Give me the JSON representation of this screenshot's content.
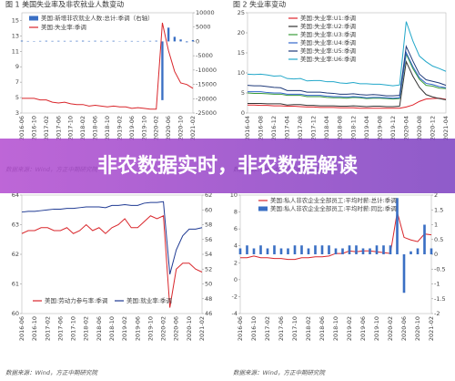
{
  "banner": "非农数据实时，非农数据解读",
  "chart_data": [
    {
      "type": "line",
      "title": "图 1  美国失业率及非农就业人数变动",
      "source": "数据来源：Wind，方正中期研究院",
      "legend": "upper left",
      "categories": [
        "2016-06",
        null,
        "2016-10",
        null,
        "2017-02",
        null,
        "2017-06",
        null,
        "2017-10",
        null,
        "2018-02",
        null,
        "2018-06",
        null,
        "2018-10",
        null,
        "2019-02",
        null,
        "2019-06",
        null,
        "2019-10",
        null,
        "2020-02",
        null,
        "2020-06",
        null,
        "2020-10",
        null,
        "2021-02"
      ],
      "ylim": [
        3,
        16
      ],
      "yticks": [
        3,
        5,
        7,
        9,
        11,
        13,
        15
      ],
      "y2lim": [
        -25000,
        10000
      ],
      "y2ticks": [
        -25000,
        -20000,
        -15000,
        -10000,
        -5000,
        0,
        5000,
        10000
      ],
      "series": [
        {
          "name": "美国:新增非农就业人数:总计:季调（右轴）",
          "color": "#3a6fc4",
          "type": "bar",
          "axis": "y2",
          "values": [
            270,
            150,
            130,
            180,
            230,
            180,
            210,
            190,
            200,
            220,
            250,
            170,
            230,
            190,
            160,
            220,
            80,
            190,
            170,
            150,
            170,
            190,
            250,
            -20500,
            4800,
            1600,
            680,
            -300,
            470
          ]
        },
        {
          "name": "美国:失业率:季调",
          "color": "#d9262b",
          "values": [
            4.9,
            4.9,
            4.9,
            4.7,
            4.7,
            4.4,
            4.3,
            4.4,
            4.2,
            4.1,
            4.1,
            3.9,
            4.0,
            3.9,
            3.8,
            3.9,
            3.8,
            3.8,
            3.6,
            3.7,
            3.6,
            3.5,
            3.5,
            14.7,
            11.1,
            8.4,
            6.9,
            6.7,
            6.2
          ]
        }
      ]
    },
    {
      "type": "line",
      "title": "图 2  失业率变动",
      "source": "数据来源：Wind，方正中期研究院",
      "legend": "upper center",
      "categories": [
        "2016-04",
        null,
        "2016-08",
        null,
        "2016-12",
        null,
        "2017-04",
        null,
        "2017-08",
        null,
        "2017-12",
        null,
        "2018-04",
        null,
        "2018-08",
        null,
        "2018-12",
        null,
        "2019-04",
        null,
        "2019-08",
        null,
        "2019-12",
        null,
        "2020-04",
        null,
        "2020-08",
        null,
        "2020-12",
        null,
        "2021-04"
      ],
      "ylim": [
        0,
        25
      ],
      "yticks": [
        0,
        5,
        10,
        15,
        20,
        25
      ],
      "series": [
        {
          "name": "美国:失业率:U1:季调",
          "color": "#e0242b",
          "values": [
            2.0,
            2.0,
            1.9,
            1.9,
            1.8,
            1.8,
            1.7,
            1.7,
            1.6,
            1.5,
            1.5,
            1.4,
            1.4,
            1.4,
            1.3,
            1.3,
            1.3,
            1.2,
            1.2,
            1.2,
            1.2,
            1.2,
            1.2,
            1.2,
            1.5,
            2.0,
            2.9,
            3.5,
            3.6,
            3.7,
            3.4
          ]
        },
        {
          "name": "美国:失业率:U2:季调",
          "color": "#333333",
          "values": [
            2.4,
            2.4,
            2.4,
            2.3,
            2.3,
            2.3,
            2.0,
            2.1,
            2.1,
            1.9,
            1.9,
            1.8,
            1.8,
            1.8,
            1.7,
            1.7,
            1.8,
            1.7,
            1.6,
            1.7,
            1.7,
            1.6,
            1.6,
            1.7,
            12.8,
            9.2,
            6.4,
            4.6,
            4.0,
            3.6,
            3.3
          ]
        },
        {
          "name": "美国:失业率:U3:季调",
          "color": "#3a9c3a",
          "values": [
            5.0,
            4.9,
            4.9,
            4.8,
            4.7,
            4.7,
            4.4,
            4.4,
            4.4,
            4.1,
            4.1,
            4.1,
            3.9,
            3.8,
            3.8,
            3.7,
            3.9,
            3.8,
            3.6,
            3.7,
            3.7,
            3.6,
            3.5,
            3.6,
            14.7,
            11.1,
            8.4,
            6.9,
            6.7,
            6.2,
            6.1
          ]
        },
        {
          "name": "美国:失业率:U4:季调",
          "color": "#3366cc",
          "values": [
            5.3,
            5.3,
            5.3,
            5.1,
            5.0,
            5.0,
            4.7,
            4.7,
            4.7,
            4.4,
            4.4,
            4.4,
            4.2,
            4.1,
            4.1,
            4.0,
            4.1,
            4.0,
            3.8,
            3.9,
            3.9,
            3.8,
            3.7,
            3.8,
            15.1,
            11.6,
            8.8,
            7.4,
            7.1,
            6.6,
            6.3
          ]
        },
        {
          "name": "美国:失业率:U5:季调",
          "color": "#1f3a7a",
          "values": [
            6.9,
            6.8,
            6.8,
            6.6,
            6.4,
            6.3,
            5.6,
            5.6,
            5.6,
            5.2,
            5.2,
            5.2,
            5.0,
            4.9,
            4.7,
            4.7,
            4.8,
            4.6,
            4.5,
            4.6,
            4.5,
            4.3,
            4.3,
            4.4,
            16.6,
            13.0,
            9.7,
            8.3,
            7.9,
            7.5,
            6.9
          ]
        },
        {
          "name": "美国:失业率:U6:季调",
          "color": "#22a7c9",
          "values": [
            9.7,
            9.6,
            9.7,
            9.5,
            9.2,
            9.3,
            8.6,
            8.5,
            8.6,
            8.0,
            8.1,
            8.1,
            7.8,
            7.8,
            7.5,
            7.4,
            7.6,
            7.3,
            7.3,
            7.2,
            7.2,
            7.0,
            6.8,
            7.0,
            22.8,
            18.0,
            14.2,
            12.8,
            11.7,
            11.1,
            10.4
          ]
        }
      ]
    },
    {
      "type": "line",
      "source": "数据来源：Wind，方正中期研究院",
      "legend": "lower center",
      "categories": [
        "2016-06",
        null,
        "2016-10",
        null,
        "2017-02",
        null,
        "2017-06",
        null,
        "2017-10",
        null,
        "2018-02",
        null,
        "2018-06",
        null,
        "2018-10",
        null,
        "2019-02",
        null,
        "2019-06",
        null,
        "2019-10",
        null,
        "2020-02",
        null,
        "2020-06",
        null,
        "2020-10",
        null,
        "2021-02"
      ],
      "ylim": [
        60,
        64
      ],
      "yticks": [
        60,
        61,
        62,
        63,
        64
      ],
      "y2lim": [
        46,
        62
      ],
      "y2ticks": [
        46,
        48,
        50,
        52,
        54,
        56,
        58,
        60,
        62
      ],
      "series": [
        {
          "name": "美国:劳动力参与率:季调",
          "color": "#d9262b",
          "values": [
            62.7,
            62.8,
            62.8,
            62.9,
            62.9,
            62.8,
            62.8,
            62.9,
            62.7,
            62.8,
            63.0,
            62.8,
            62.9,
            62.7,
            62.9,
            63.0,
            63.2,
            62.9,
            62.9,
            63.1,
            63.3,
            63.2,
            63.3,
            60.2,
            61.5,
            61.7,
            61.7,
            61.5,
            61.4
          ]
        },
        {
          "name": "美国:就业率:季调",
          "color": "#1f3a93",
          "axis": "y2",
          "values": [
            59.7,
            59.8,
            59.8,
            59.9,
            60.0,
            60.1,
            60.1,
            60.2,
            60.2,
            60.3,
            60.4,
            60.4,
            60.4,
            60.3,
            60.6,
            60.6,
            60.7,
            60.6,
            60.6,
            60.9,
            61.0,
            61.0,
            61.1,
            51.3,
            54.6,
            56.5,
            57.4,
            57.4,
            57.6
          ]
        }
      ]
    },
    {
      "type": "line",
      "source": "数据来源：Wind，方正中期研究院",
      "legend": "upper right",
      "categories": [
        "2016-06",
        null,
        "2016-10",
        null,
        "2017-02",
        null,
        "2017-06",
        null,
        "2017-10",
        null,
        "2018-02",
        null,
        "2018-06",
        null,
        "2018-10",
        null,
        "2019-02",
        null,
        "2019-06",
        null,
        "2019-10",
        null,
        "2020-02",
        null,
        "2020-06",
        null,
        "2020-10",
        null,
        "2021-02"
      ],
      "ylim": [
        -4,
        10
      ],
      "yticks": [
        -4,
        -2,
        0,
        2,
        4,
        6,
        8,
        10
      ],
      "y2lim": [
        -2,
        2
      ],
      "y2ticks": [
        -2,
        -1.5,
        -1,
        -0.5,
        0,
        0.5,
        1,
        1.5,
        2
      ],
      "series": [
        {
          "name": "美国:私人非农企业全部员工:平均时薪:总计:季调",
          "color": "#d9262b",
          "values": [
            2.6,
            2.6,
            2.8,
            2.6,
            2.6,
            2.5,
            2.5,
            2.4,
            2.4,
            2.6,
            2.6,
            2.7,
            2.7,
            2.8,
            3.1,
            3.1,
            3.4,
            3.3,
            3.4,
            3.4,
            3.3,
            3.2,
            3.1,
            8.0,
            5.0,
            4.7,
            4.5,
            5.4,
            5.3
          ]
        },
        {
          "name": "美国:私人非农企业全部员工:平均时薪:同比:季调",
          "color": "#3a6fc4",
          "type": "bar",
          "axis": "y2",
          "values": [
            0.2,
            0.3,
            0.2,
            0.3,
            0.2,
            0.3,
            0.2,
            0.2,
            0.3,
            0.3,
            0.2,
            0.3,
            0.3,
            0.3,
            0.2,
            0.2,
            0.3,
            0.3,
            0.2,
            0.2,
            0.3,
            0.3,
            0.3,
            1.9,
            -1.3,
            0.1,
            0.2,
            1.0,
            0.2
          ]
        }
      ]
    }
  ]
}
